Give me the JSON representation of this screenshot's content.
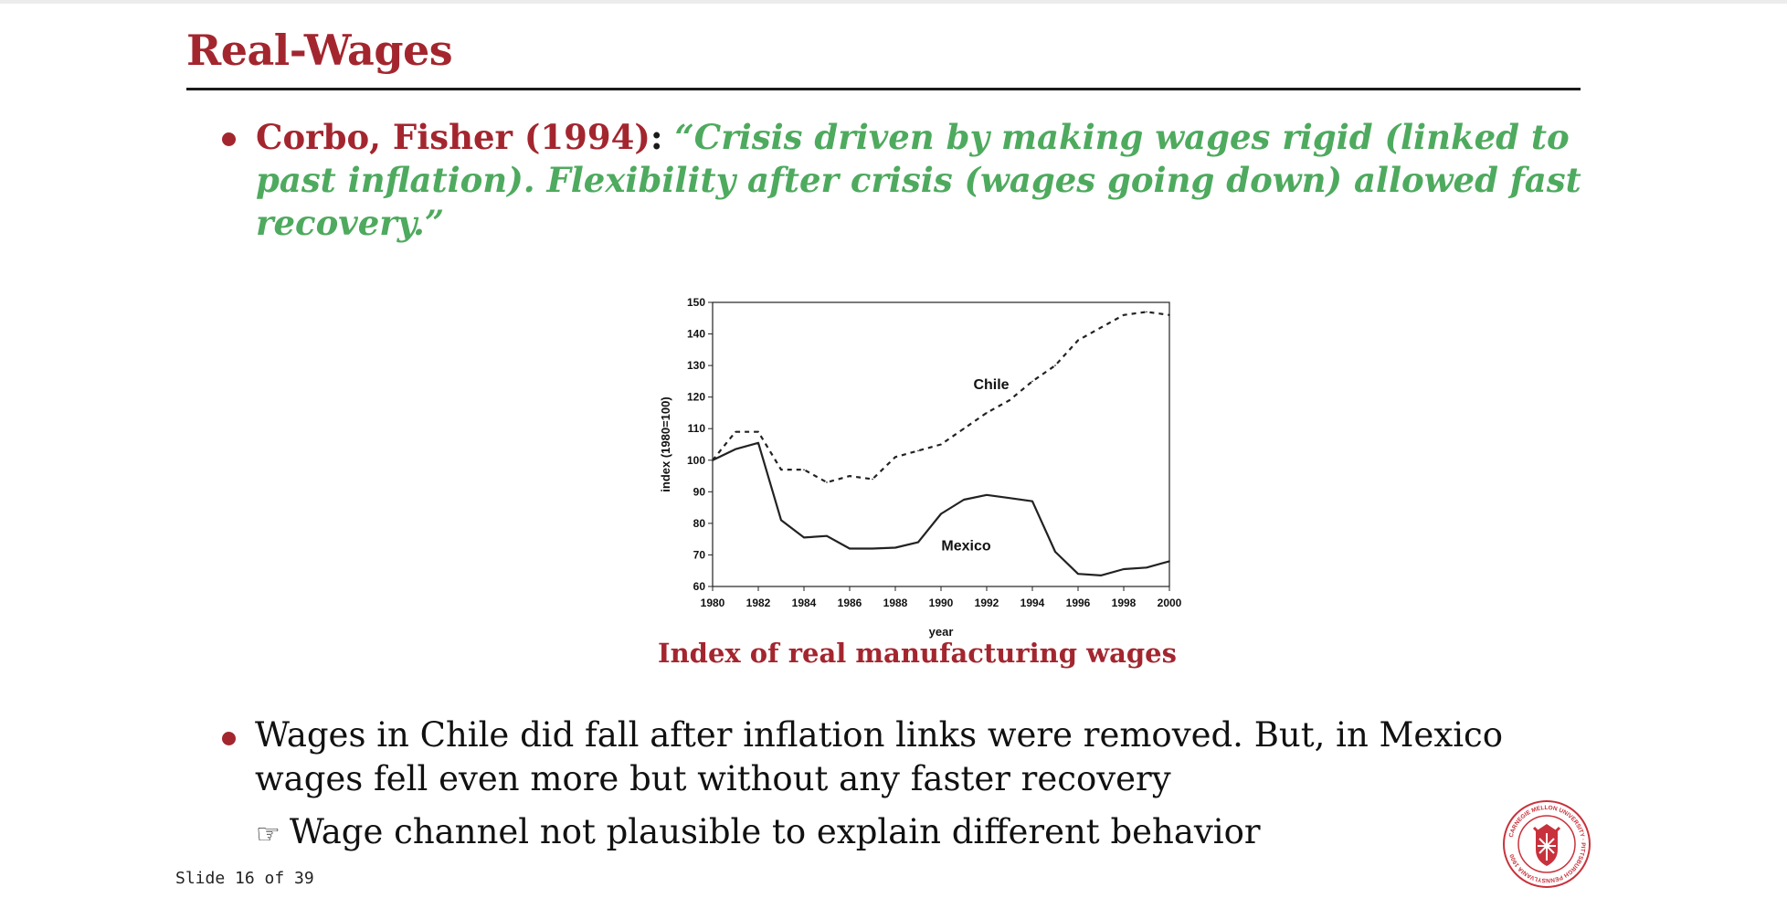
{
  "slide": {
    "title": "Real-Wages",
    "bullet1": {
      "citation": "Corbo, Fisher (1994)",
      "separator": ":",
      "quote": "“Crisis driven by making wages rigid (linked to past inflation). Flexibility after crisis (wages going down) allowed fast recovery.”"
    },
    "caption": "Index of real manufacturing wages",
    "bullet2": "Wages in Chile did fall after inflation links were removed. But, in Mexico wages fell even more but without any faster recovery",
    "sub_bullet": {
      "icon": "pointing-hand-icon",
      "glyph": "☞",
      "text": "Wage channel not plausible to explain different behavior"
    },
    "footer": "Slide 16 of 39",
    "logo": {
      "icon": "carnegie-mellon-seal-icon",
      "text": "CARNEGIE MELLON UNIVERSITY · PITTSBURGH PENNSYLVANIA 1900"
    },
    "colors": {
      "title": "#a3262f",
      "quote": "#4eaa5e",
      "text": "#111111"
    }
  },
  "chart_data": {
    "type": "line",
    "xlabel": "year",
    "ylabel": "index (1980=100)",
    "xlim": [
      1980,
      2000
    ],
    "ylim": [
      60,
      150
    ],
    "xticks": [
      1980,
      1982,
      1984,
      1986,
      1988,
      1990,
      1992,
      1994,
      1996,
      1998,
      2000
    ],
    "yticks": [
      60,
      70,
      80,
      90,
      100,
      110,
      120,
      130,
      140,
      150
    ],
    "grid": false,
    "x": [
      1980,
      1981,
      1982,
      1983,
      1984,
      1985,
      1986,
      1987,
      1988,
      1989,
      1990,
      1991,
      1992,
      1993,
      1994,
      1995,
      1996,
      1997,
      1998,
      1999,
      2000
    ],
    "series": [
      {
        "name": "Chile",
        "style": "dashed",
        "values": [
          100,
          109,
          109,
          97,
          97,
          93,
          95,
          94,
          101,
          103,
          105,
          110,
          115,
          119,
          125,
          130,
          138,
          142,
          146,
          147,
          146
        ]
      },
      {
        "name": "Mexico",
        "style": "solid",
        "values": [
          100,
          103.5,
          105.5,
          81,
          75.5,
          76,
          72,
          72,
          72.3,
          74,
          83,
          87.5,
          89,
          88,
          87,
          71,
          64,
          63.5,
          65.5,
          66,
          68
        ]
      }
    ],
    "annotations": [
      {
        "text": "Chile",
        "x": 1992.2,
        "y": 122.5
      },
      {
        "text": "Mexico",
        "x": 1991.1,
        "y": 71.5
      }
    ]
  }
}
